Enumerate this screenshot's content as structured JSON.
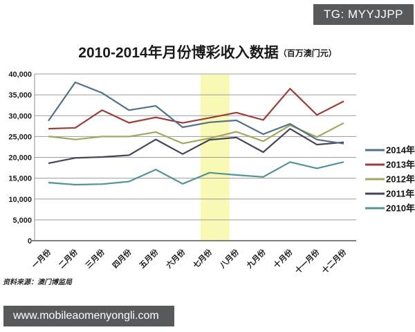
{
  "badge": {
    "text": "TG: MYYJJPP"
  },
  "source_note": "资料来源：澳门博监局",
  "footer": {
    "url": "www.mobileaomenyongli.com"
  },
  "chart_data": {
    "type": "line",
    "title": "2010-2014年月份博彩收入数据",
    "title_unit": "（百万澳门元）",
    "xlabel": "",
    "ylabel": "",
    "ylim": [
      0,
      40000
    ],
    "y_tick_step": 5000,
    "y_tick_labels": [
      "0",
      "5,000",
      "10,000",
      "15,000",
      "20,000",
      "25,000",
      "30,000",
      "35,000",
      "40,000"
    ],
    "grid": "horizontal",
    "legend_position": "right",
    "categories": [
      "一月份",
      "二月份",
      "三月份",
      "四月份",
      "五月份",
      "六月份",
      "七月份",
      "八月份",
      "九月份",
      "十月份",
      "十一月份",
      "十二月份"
    ],
    "series": [
      {
        "name": "2014年",
        "color": "#51708b",
        "values": [
          28739,
          38007,
          35453,
          31317,
          32354,
          27215,
          28416,
          28877,
          25564,
          28025,
          24269,
          23286
        ]
      },
      {
        "name": "2013年",
        "color": "#9c3b38",
        "values": [
          26864,
          27084,
          31336,
          28305,
          29589,
          28269,
          29485,
          30737,
          28963,
          36477,
          30179,
          33460
        ]
      },
      {
        "name": "2012年",
        "color": "#a2a75e",
        "values": [
          25040,
          24286,
          24989,
          25003,
          26078,
          23334,
          24579,
          26136,
          23866,
          27700,
          24882,
          28245
        ]
      },
      {
        "name": "2011年",
        "color": "#434458",
        "values": [
          18571,
          19863,
          20087,
          20507,
          24306,
          20792,
          24212,
          24768,
          21244,
          26851,
          23058,
          23610
        ]
      },
      {
        "name": "2010年",
        "color": "#529493",
        "values": [
          13937,
          13445,
          13569,
          14186,
          17075,
          13642,
          16310,
          15773,
          15302,
          18869,
          17356,
          18883
        ]
      }
    ],
    "highlight_band": {
      "from_month": "七月份",
      "to_month": "八月份",
      "color": "#f9f9b6"
    }
  }
}
